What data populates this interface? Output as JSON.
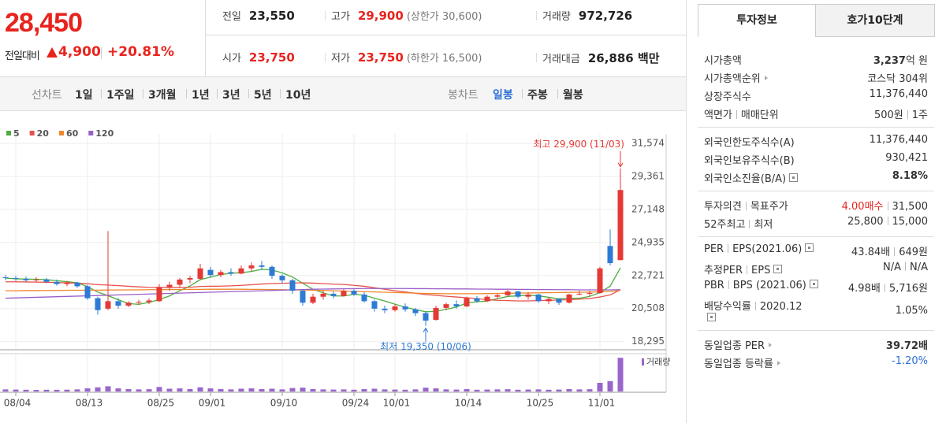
{
  "header": {
    "price": "28,450",
    "change_label": "전일대비",
    "change": "4,900",
    "change_rate": "+20.81%"
  },
  "stats": [
    [
      {
        "label": "전일",
        "value": "23,550"
      },
      {
        "label": "고가",
        "value": "29,900",
        "note": "(상한가 30,600)"
      },
      {
        "label": "거래량",
        "value": "972,726"
      }
    ],
    [
      {
        "label": "시가",
        "value": "23,750"
      },
      {
        "label": "저가",
        "value": "23,750",
        "note": "(하한가 16,500)"
      },
      {
        "label": "거래대금",
        "value": "26,886 백만"
      }
    ]
  ],
  "period_tabs": {
    "line_label": "선차트",
    "line": [
      "1일",
      "1주일",
      "3개월",
      "1년",
      "3년",
      "5년",
      "10년"
    ],
    "candle_label": "봉차트",
    "candle": [
      "일봉",
      "주봉",
      "월봉"
    ]
  },
  "chart_data": {
    "type": "candlestick",
    "categories": [
      null,
      "08/04",
      null,
      null,
      null,
      null,
      null,
      null,
      "08/13",
      null,
      null,
      null,
      null,
      null,
      null,
      "08/25",
      null,
      null,
      null,
      null,
      "09/01",
      null,
      null,
      null,
      null,
      null,
      null,
      "09/10",
      null,
      null,
      null,
      null,
      null,
      null,
      "09/24",
      null,
      null,
      null,
      "10/01",
      null,
      null,
      null,
      null,
      null,
      null,
      "10/14",
      null,
      null,
      null,
      null,
      null,
      null,
      "10/25",
      null,
      null,
      null,
      null,
      null,
      "11/01",
      null,
      null
    ],
    "ohlc": [
      [
        22600,
        22750,
        22400,
        22550
      ],
      [
        22550,
        22700,
        22350,
        22500
      ],
      [
        22500,
        22650,
        22300,
        22400
      ],
      [
        22400,
        22600,
        22250,
        22450
      ],
      [
        22450,
        22550,
        22200,
        22300
      ],
      [
        22300,
        22450,
        22050,
        22150
      ],
      [
        22150,
        22350,
        22000,
        22250
      ],
      [
        22250,
        22300,
        21900,
        22000
      ],
      [
        22000,
        22100,
        21100,
        21200
      ],
      [
        21200,
        21300,
        20100,
        20400
      ],
      [
        20500,
        25700,
        20400,
        21000
      ],
      [
        21000,
        21200,
        20500,
        20700
      ],
      [
        20700,
        21000,
        20600,
        20900
      ],
      [
        20900,
        21100,
        20750,
        20950
      ],
      [
        20950,
        21200,
        20800,
        21050
      ],
      [
        21000,
        22150,
        20950,
        21950
      ],
      [
        21950,
        22300,
        21700,
        22100
      ],
      [
        22100,
        22550,
        21900,
        22450
      ],
      [
        22450,
        22700,
        22200,
        22550
      ],
      [
        22500,
        23500,
        22400,
        23200
      ],
      [
        23100,
        23300,
        22600,
        22750
      ],
      [
        22750,
        23100,
        22600,
        22950
      ],
      [
        22950,
        23200,
        22700,
        22850
      ],
      [
        22850,
        23400,
        22800,
        23200
      ],
      [
        23200,
        23600,
        23000,
        23400
      ],
      [
        23400,
        23700,
        23100,
        23300
      ],
      [
        23300,
        23400,
        22500,
        22700
      ],
      [
        22700,
        22800,
        22200,
        22400
      ],
      [
        22400,
        22500,
        21500,
        21700
      ],
      [
        21700,
        21800,
        20700,
        20900
      ],
      [
        20900,
        21500,
        20800,
        21300
      ],
      [
        21300,
        21700,
        21100,
        21500
      ],
      [
        21500,
        21650,
        21200,
        21350
      ],
      [
        21350,
        21800,
        21300,
        21700
      ],
      [
        21700,
        21800,
        21350,
        21450
      ],
      [
        21450,
        21600,
        20900,
        21000
      ],
      [
        21000,
        21100,
        20300,
        20500
      ],
      [
        20500,
        20700,
        20200,
        20400
      ],
      [
        20400,
        20800,
        20300,
        20650
      ],
      [
        20650,
        20850,
        20300,
        20450
      ],
      [
        20450,
        20550,
        20000,
        20200
      ],
      [
        20200,
        20300,
        19350,
        19700
      ],
      [
        19750,
        20700,
        19700,
        20550
      ],
      [
        20550,
        20900,
        20400,
        20800
      ],
      [
        20800,
        21050,
        20500,
        20650
      ],
      [
        20650,
        21300,
        20600,
        21200
      ],
      [
        21200,
        21350,
        20900,
        21000
      ],
      [
        21000,
        21400,
        20950,
        21300
      ],
      [
        21300,
        21500,
        21150,
        21400
      ],
      [
        21400,
        21750,
        21300,
        21650
      ],
      [
        21650,
        21700,
        21200,
        21300
      ],
      [
        21300,
        21600,
        21100,
        21450
      ],
      [
        21450,
        21500,
        20900,
        21000
      ],
      [
        21000,
        21250,
        20800,
        21150
      ],
      [
        21150,
        21200,
        20750,
        20900
      ],
      [
        20900,
        21500,
        20850,
        21450
      ],
      [
        21450,
        21700,
        21400,
        21500
      ],
      [
        21500,
        21700,
        21300,
        21550
      ],
      [
        21550,
        23300,
        21500,
        23200
      ],
      [
        24700,
        25800,
        23400,
        23550
      ],
      [
        23750,
        29900,
        23750,
        28450
      ]
    ],
    "volume": [
      60000,
      55000,
      50000,
      45000,
      50000,
      48000,
      52000,
      60000,
      90000,
      120000,
      150000,
      90000,
      70000,
      60000,
      65000,
      130000,
      80000,
      90000,
      70000,
      120000,
      90000,
      70000,
      60000,
      80000,
      90000,
      70000,
      80000,
      60000,
      100000,
      110000,
      70000,
      60000,
      55000,
      60000,
      50000,
      70000,
      80000,
      60000,
      55000,
      50000,
      60000,
      110000,
      90000,
      60000,
      55000,
      70000,
      50000,
      55000,
      60000,
      65000,
      50000,
      55000,
      60000,
      50000,
      55000,
      70000,
      60000,
      65000,
      250000,
      300000,
      972726
    ],
    "volume_label": "거래량",
    "volume_color": "#9966cc",
    "volume_ylim": [
      0,
      1000000
    ],
    "up_color": "#e53935",
    "down_color": "#2d7bd6",
    "moving_averages": [
      {
        "name": "5",
        "color": "#4cae3f",
        "values": [
          22550,
          22500,
          22480,
          22470,
          22440,
          22370,
          22310,
          22230,
          21980,
          21610,
          21370,
          21100,
          20840,
          20790,
          20920,
          21110,
          21350,
          21700,
          22020,
          22450,
          22610,
          22790,
          22870,
          22910,
          22990,
          23140,
          23090,
          22900,
          22620,
          22200,
          21800,
          21560,
          21350,
          21350,
          21460,
          21400,
          21200,
          21010,
          20800,
          20600,
          20440,
          20290,
          20320,
          20450,
          20610,
          20880,
          20960,
          21010,
          21170,
          21320,
          21360,
          21400,
          21360,
          21260,
          21160,
          21190,
          21200,
          21320,
          21580,
          22010,
          23230
        ]
      },
      {
        "name": "20",
        "color": "#e8514b",
        "values": [
          22300,
          22300,
          22290,
          22280,
          22270,
          22250,
          22230,
          22210,
          22170,
          22110,
          22080,
          22040,
          22000,
          21960,
          21930,
          21920,
          21910,
          21920,
          21930,
          21990,
          22000,
          22010,
          22030,
          22060,
          22100,
          22150,
          22180,
          22200,
          22220,
          22230,
          22210,
          22180,
          22140,
          22120,
          22060,
          22000,
          21900,
          21800,
          21700,
          21620,
          21530,
          21450,
          21390,
          21330,
          21280,
          21230,
          21170,
          21100,
          21060,
          21040,
          21020,
          21020,
          21040,
          21060,
          21080,
          21100,
          21140,
          21180,
          21280,
          21420,
          21760
        ]
      },
      {
        "name": "60",
        "color": "#f0862a",
        "values": [
          21700,
          21700,
          21710,
          21710,
          21720,
          21720,
          21730,
          21730,
          21740,
          21740,
          21750,
          21750,
          21760,
          21760,
          21770,
          21770,
          21780,
          21780,
          21790,
          21790,
          21800,
          21800,
          21800,
          21800,
          21790,
          21790,
          21780,
          21770,
          21760,
          21750,
          21740,
          21720,
          21700,
          21680,
          21660,
          21640,
          21620,
          21600,
          21580,
          21560,
          21540,
          21520,
          21510,
          21500,
          21500,
          21500,
          21500,
          21510,
          21520,
          21530,
          21540,
          21550,
          21560,
          21570,
          21580,
          21590,
          21600,
          21610,
          21630,
          21660,
          21720
        ]
      },
      {
        "name": "120",
        "color": "#9b5fc8",
        "values": [
          21200,
          21220,
          21240,
          21260,
          21280,
          21300,
          21320,
          21340,
          21360,
          21380,
          21400,
          21420,
          21440,
          21460,
          21480,
          21500,
          21520,
          21540,
          21560,
          21580,
          21600,
          21620,
          21640,
          21660,
          21680,
          21700,
          21720,
          21740,
          21760,
          21780,
          21800,
          21810,
          21820,
          21830,
          21840,
          21850,
          21850,
          21850,
          21850,
          21850,
          21840,
          21840,
          21830,
          21830,
          21820,
          21820,
          21810,
          21810,
          21800,
          21800,
          21790,
          21790,
          21780,
          21780,
          21770,
          21770,
          21760,
          21760,
          21760,
          21760,
          21770
        ]
      }
    ],
    "ylim": [
      17800,
      33000
    ],
    "yticks": [
      {
        "value": 31574,
        "label": "31,574"
      },
      {
        "value": 29361,
        "label": "29,361"
      },
      {
        "value": 27148,
        "label": "27,148"
      },
      {
        "value": 24935,
        "label": "24,935"
      },
      {
        "value": 22721,
        "label": "22,721"
      },
      {
        "value": 20508,
        "label": "20,508"
      },
      {
        "value": 18295,
        "label": "18,295"
      }
    ],
    "grid": true,
    "annotations": [
      {
        "text": "최고 29,900 (11/03)",
        "index": 60
      },
      {
        "text": "최저 19,350 (10/06)",
        "index": 41
      }
    ]
  },
  "panel": {
    "tabs": [
      "투자정보",
      "호가10단계"
    ],
    "sections": [
      [
        {
          "label": [
            "시가총액"
          ],
          "value": [
            "3,237",
            "억 원"
          ]
        },
        {
          "label": [
            "시가총액순위"
          ],
          "value": [
            "코스닥 304위"
          ]
        },
        {
          "label": [
            "상장주식수"
          ],
          "value": [
            "11,376,440"
          ]
        },
        {
          "label": [
            "액면가",
            "매매단위"
          ],
          "value": [
            "500원",
            "1주"
          ]
        }
      ],
      [
        {
          "label": [
            "외국인한도주식수(A)"
          ],
          "value": [
            "11,376,440"
          ]
        },
        {
          "label": [
            "외국인보유주식수(B)"
          ],
          "value": [
            "930,421"
          ]
        },
        {
          "label": [
            "외국인소진율(B/A)"
          ],
          "value": [
            "8.18%"
          ]
        }
      ],
      [
        {
          "label": [
            "투자의견",
            "목표주가"
          ],
          "value": [
            "4.00매수",
            "31,500"
          ]
        },
        {
          "label": [
            "52주최고",
            "최저"
          ],
          "value": [
            "25,800",
            "15,000"
          ]
        }
      ],
      [
        {
          "label": [
            "PER",
            "EPS(2021.06)"
          ],
          "value": [
            "43.84배",
            "649원"
          ]
        },
        {
          "label": [
            "추정PER",
            "EPS"
          ],
          "value": [
            "N/A",
            "N/A"
          ]
        },
        {
          "label": [
            "PBR",
            "BPS (2021.06)"
          ],
          "value": [
            "4.98배",
            "5,716원"
          ]
        },
        {
          "label": [
            "배당수익률",
            "2020.12"
          ],
          "value": [
            "1.05%"
          ]
        }
      ],
      [
        {
          "label": [
            "동일업종 PER"
          ],
          "value": [
            "39.72배"
          ]
        },
        {
          "label": [
            "동일업종 등락률"
          ],
          "value": [
            "-1.20%"
          ]
        }
      ]
    ]
  }
}
